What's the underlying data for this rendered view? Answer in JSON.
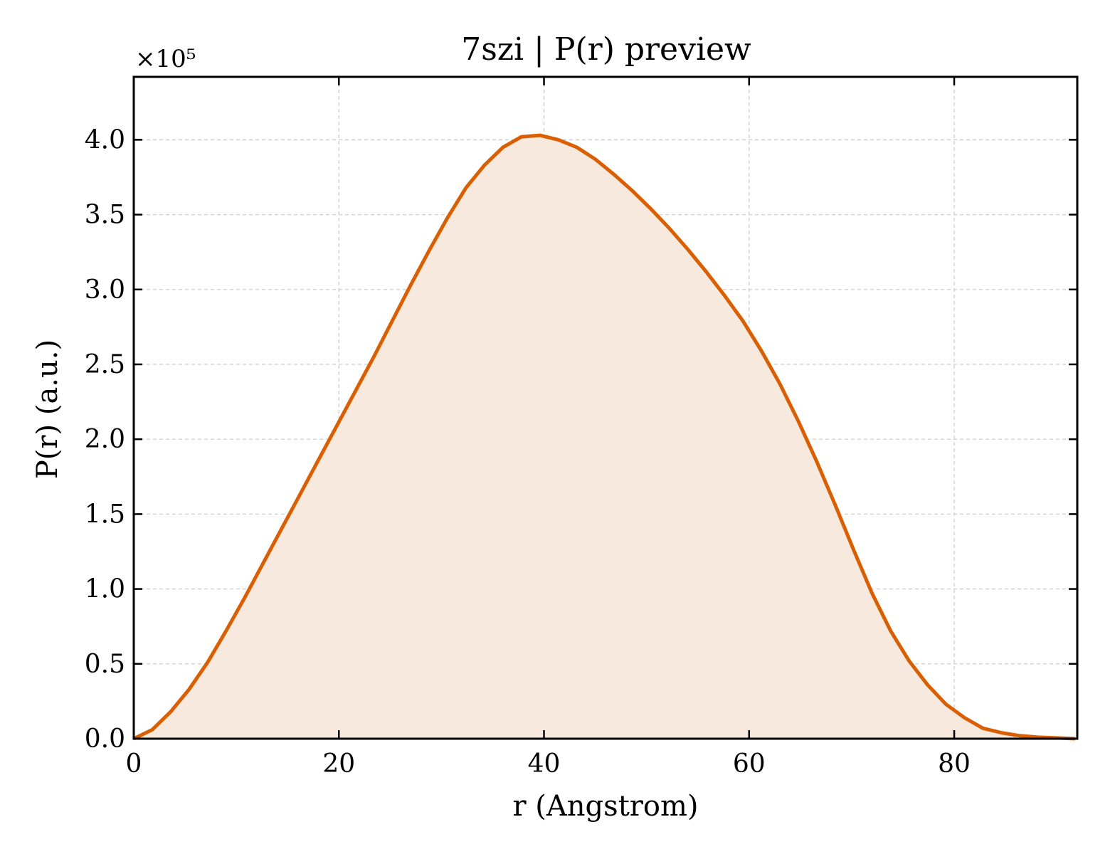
{
  "chart_data": {
    "type": "area",
    "title": "7szi | P(r) preview",
    "xlabel": "r (Angstrom)",
    "ylabel": "P(r) (a.u.)",
    "y_multiplier_label": "×10⁵",
    "xlim": [
      0,
      92
    ],
    "ylim": [
      0,
      4.42
    ],
    "x_ticks": [
      0,
      20,
      40,
      60,
      80
    ],
    "x_tick_labels": [
      "0",
      "20",
      "40",
      "60",
      "80"
    ],
    "y_ticks": [
      0,
      0.5,
      1.0,
      1.5,
      2.0,
      2.5,
      3.0,
      3.5,
      4.0
    ],
    "y_tick_labels": [
      "0.0",
      "0.5",
      "1.0",
      "1.5",
      "2.0",
      "2.5",
      "3.0",
      "3.5",
      "4.0"
    ],
    "grid": true,
    "line_color": "#d95f02",
    "fill_color": "#f8e9de",
    "series": [
      {
        "x": [
          0,
          1.8,
          3.6,
          5.4,
          7.2,
          9.0,
          10.8,
          12.6,
          14.4,
          16.2,
          18.0,
          19.8,
          21.6,
          23.4,
          25.2,
          27.0,
          28.8,
          30.6,
          32.4,
          34.2,
          36.0,
          37.8,
          39.6,
          41.4,
          43.2,
          45.0,
          46.8,
          48.6,
          50.4,
          52.2,
          54.0,
          55.8,
          57.6,
          59.4,
          61.2,
          63.0,
          64.8,
          66.6,
          68.4,
          70.2,
          72.0,
          73.8,
          75.6,
          77.4,
          79.2,
          81.0,
          82.8,
          84.6,
          86.4,
          88.2,
          90.0,
          91.8
        ],
        "y": [
          0.0,
          0.06,
          0.18,
          0.33,
          0.51,
          0.72,
          0.94,
          1.17,
          1.4,
          1.63,
          1.86,
          2.09,
          2.32,
          2.55,
          2.79,
          3.03,
          3.26,
          3.48,
          3.68,
          3.83,
          3.95,
          4.02,
          4.03,
          4.0,
          3.95,
          3.87,
          3.77,
          3.66,
          3.54,
          3.41,
          3.27,
          3.12,
          2.96,
          2.79,
          2.59,
          2.37,
          2.12,
          1.85,
          1.56,
          1.26,
          0.97,
          0.72,
          0.52,
          0.36,
          0.23,
          0.14,
          0.07,
          0.04,
          0.02,
          0.01,
          0.005,
          0.0
        ]
      }
    ]
  }
}
